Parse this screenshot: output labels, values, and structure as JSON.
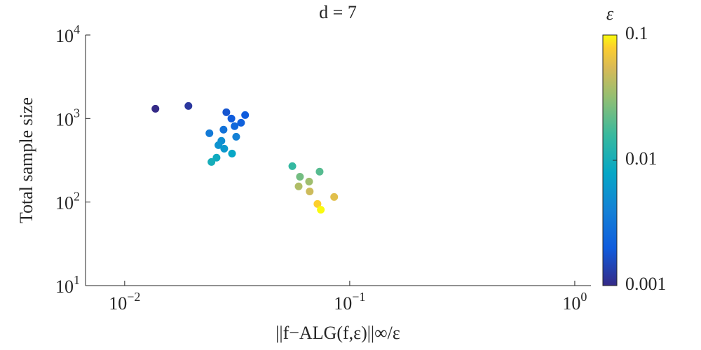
{
  "chart_data": {
    "type": "scatter",
    "title": "d = 7",
    "x_label": "||f−ALG(f,ε)||∞/ε",
    "y_label": "Total sample size",
    "x_scale": "log",
    "y_scale": "log",
    "xlim": [
      0.0067,
      1.18
    ],
    "ylim": [
      10,
      10000
    ],
    "xticks": [
      {
        "value": 0.01,
        "label": "10",
        "exponent": "−2"
      },
      {
        "value": 0.1,
        "label": "10",
        "exponent": "−1"
      },
      {
        "value": 1,
        "label": "10",
        "exponent": "0"
      }
    ],
    "yticks": [
      {
        "value": 10,
        "label": "10",
        "exponent": "1"
      },
      {
        "value": 100,
        "label": "10",
        "exponent": "2"
      },
      {
        "value": 1000,
        "label": "10",
        "exponent": "3"
      },
      {
        "value": 10000,
        "label": "10",
        "exponent": "4"
      }
    ],
    "x": [
      0.0137,
      0.0192,
      0.0283,
      0.0343,
      0.0298,
      0.0329,
      0.0308,
      0.0275,
      0.0238,
      0.0313,
      0.0269,
      0.0261,
      0.0277,
      0.03,
      0.0256,
      0.0243,
      0.0556,
      0.0735,
      0.0601,
      0.066,
      0.0593,
      0.0664,
      0.0853,
      0.0719,
      0.0744
    ],
    "y": [
      1310,
      1415,
      1190,
      1100,
      1000,
      890,
      810,
      735,
      667,
      605,
      540,
      480,
      436,
      381,
      340,
      302,
      269,
      231,
      201,
      176,
      154,
      134,
      115,
      95,
      81
    ],
    "c": [
      0.001,
      0.0012,
      0.0018,
      0.002,
      0.002,
      0.0022,
      0.0025,
      0.003,
      0.0035,
      0.004,
      0.005,
      0.0055,
      0.006,
      0.008,
      0.009,
      0.01,
      0.015,
      0.02,
      0.025,
      0.035,
      0.04,
      0.05,
      0.06,
      0.08,
      0.1
    ],
    "colorbar": {
      "title": "ε",
      "scale": "log",
      "colormap": "parula",
      "lim": [
        0.001,
        0.1
      ],
      "ticks": [
        0.001,
        0.01,
        0.1
      ]
    }
  }
}
